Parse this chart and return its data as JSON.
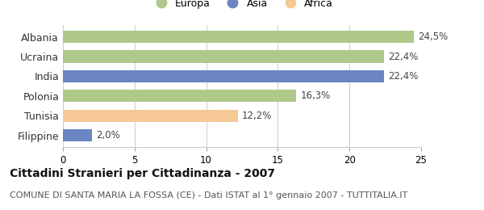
{
  "categories": [
    "Albania",
    "Ucraina",
    "India",
    "Polonia",
    "Tunisia",
    "Filippine"
  ],
  "values": [
    24.5,
    22.4,
    22.4,
    16.3,
    12.2,
    2.0
  ],
  "bar_colors": [
    "#aec98a",
    "#aec98a",
    "#6a85c0",
    "#aec98a",
    "#f5c896",
    "#6a85c0"
  ],
  "labels": [
    "24,5%",
    "22,4%",
    "22,4%",
    "16,3%",
    "12,2%",
    "2,0%"
  ],
  "legend": [
    {
      "label": "Europa",
      "color": "#aec98a"
    },
    {
      "label": "Asia",
      "color": "#6a85c0"
    },
    {
      "label": "Africa",
      "color": "#f5c896"
    }
  ],
  "xlim": [
    0,
    25
  ],
  "xticks": [
    0,
    5,
    10,
    15,
    20,
    25
  ],
  "title": "Cittadini Stranieri per Cittadinanza - 2007",
  "subtitle": "COMUNE DI SANTA MARIA LA FOSSA (CE) - Dati ISTAT al 1° gennaio 2007 - TUTTITALIA.IT",
  "title_fontsize": 10,
  "subtitle_fontsize": 8,
  "background_color": "#ffffff",
  "grid_color": "#cccccc"
}
